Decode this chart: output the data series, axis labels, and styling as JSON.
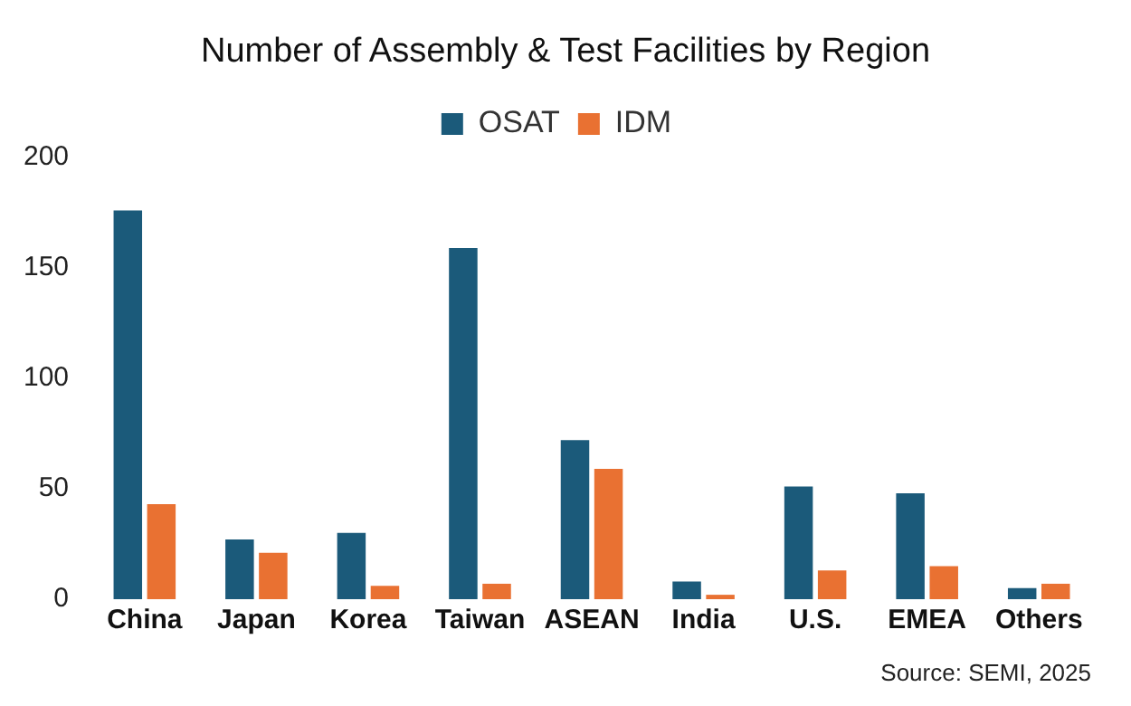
{
  "chart_data": {
    "type": "bar",
    "title": "Number of Assembly & Test Facilities by Region",
    "categories": [
      "China",
      "Japan",
      "Korea",
      "Taiwan",
      "ASEAN",
      "India",
      "U.S.",
      "EMEA",
      "Others"
    ],
    "series": [
      {
        "name": "OSAT",
        "color": "#1b5a7a",
        "values": [
          176,
          27,
          30,
          159,
          72,
          8,
          51,
          48,
          5
        ]
      },
      {
        "name": "IDM",
        "color": "#e97132",
        "values": [
          43,
          21,
          6,
          7,
          59,
          2,
          13,
          15,
          7
        ]
      }
    ],
    "ylim": [
      0,
      200
    ],
    "yticks": [
      0,
      50,
      100,
      150,
      200
    ],
    "grid": false,
    "legend": "top",
    "annotations": [
      "Source: SEMI, 2025"
    ]
  }
}
